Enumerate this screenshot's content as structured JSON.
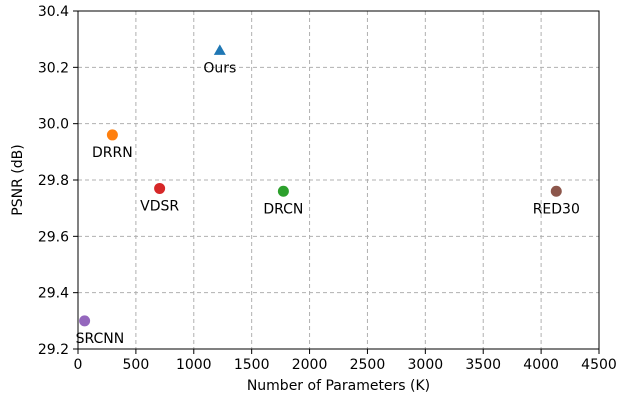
{
  "chart_data": {
    "type": "scatter",
    "xlabel": "Number of Parameters (K)",
    "ylabel": "PSNR (dB)",
    "xlim": [
      0,
      4500
    ],
    "ylim": [
      29.2,
      30.4
    ],
    "xticks": [
      "0",
      "500",
      "1000",
      "1500",
      "2000",
      "2500",
      "3000",
      "3500",
      "4000",
      "4500"
    ],
    "yticks": [
      "29.2",
      "29.4",
      "29.6",
      "29.8",
      "30.0",
      "30.2",
      "30.4"
    ],
    "grid": true,
    "points": [
      {
        "label": "Ours",
        "x": 1225,
        "y": 30.26,
        "marker": "triangle",
        "color": "#1f77b4"
      },
      {
        "label": "DRRN",
        "x": 297,
        "y": 29.96,
        "marker": "circle",
        "color": "#ff7f0e"
      },
      {
        "label": "VDSR",
        "x": 705,
        "y": 29.77,
        "marker": "circle",
        "color": "#d62728"
      },
      {
        "label": "DRCN",
        "x": 1774,
        "y": 29.76,
        "marker": "circle",
        "color": "#2ca02c"
      },
      {
        "label": "RED30",
        "x": 4131,
        "y": 29.76,
        "marker": "circle",
        "color": "#8c564b"
      },
      {
        "label": "SRCNN",
        "x": 57,
        "y": 29.3,
        "marker": "circle",
        "color": "#9467bd"
      }
    ]
  }
}
